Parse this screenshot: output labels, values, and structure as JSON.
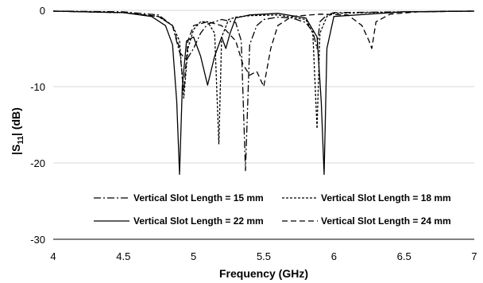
{
  "chart_data": {
    "type": "line",
    "xlabel": "Frequency (GHz)",
    "ylabel_main": "|S",
    "ylabel_sub": "11",
    "ylabel_tail": "| (dB)",
    "xlim": [
      4,
      7
    ],
    "ylim": [
      -30,
      0
    ],
    "x_ticks": [
      "4",
      "4.5",
      "5",
      "5.5",
      "6",
      "6.5",
      "7"
    ],
    "y_ticks": [
      "0",
      "-10",
      "-20",
      "-30"
    ],
    "grid": "horizontal",
    "legend_position": "bottom",
    "series": [
      {
        "name": "Vertical Slot Length = 15 mm",
        "dash": "dash-dot",
        "x": [
          4.0,
          4.5,
          4.75,
          4.85,
          4.9,
          4.95,
          5.0,
          5.05,
          5.1,
          5.2,
          5.3,
          5.34,
          5.37,
          5.4,
          5.45,
          5.5,
          5.6,
          5.7,
          5.8,
          5.85,
          5.88,
          5.9,
          5.95,
          6.0,
          6.5,
          7.0
        ],
        "y": [
          -0.1,
          -0.2,
          -0.6,
          -2.0,
          -5.5,
          -6.5,
          -5.0,
          -3.0,
          -1.8,
          -1.2,
          -1.6,
          -4.0,
          -21.0,
          -4.5,
          -2.0,
          -1.2,
          -0.9,
          -1.0,
          -1.6,
          -2.8,
          -5.0,
          -1.5,
          -0.6,
          -0.3,
          -0.2,
          -0.1
        ]
      },
      {
        "name": "Vertical Slot Length = 18 mm",
        "dash": "fine-dash",
        "x": [
          4.0,
          4.5,
          4.75,
          4.85,
          4.9,
          4.93,
          4.96,
          5.0,
          5.05,
          5.1,
          5.15,
          5.18,
          5.2,
          5.25,
          5.3,
          5.4,
          5.6,
          5.8,
          5.85,
          5.88,
          5.9,
          5.95,
          6.0,
          6.5,
          7.0
        ],
        "y": [
          -0.1,
          -0.3,
          -0.8,
          -2.0,
          -4.0,
          -11.5,
          -5.0,
          -2.5,
          -1.5,
          -1.5,
          -3.0,
          -17.5,
          -3.5,
          -1.2,
          -0.9,
          -0.7,
          -0.6,
          -1.2,
          -3.0,
          -15.5,
          -3.0,
          -0.8,
          -0.4,
          -0.2,
          -0.1
        ]
      },
      {
        "name": "Vertical Slot Length = 22 mm",
        "dash": "solid",
        "x": [
          4.0,
          4.5,
          4.7,
          4.8,
          4.85,
          4.88,
          4.9,
          4.92,
          4.95,
          5.0,
          5.05,
          5.1,
          5.15,
          5.2,
          5.23,
          5.26,
          5.3,
          5.4,
          5.6,
          5.8,
          5.88,
          5.91,
          5.93,
          5.95,
          6.0,
          6.5,
          7.0
        ],
        "y": [
          -0.1,
          -0.3,
          -0.8,
          -2.0,
          -4.5,
          -12.0,
          -21.5,
          -10.0,
          -4.0,
          -3.5,
          -6.0,
          -9.8,
          -6.0,
          -3.5,
          -5.0,
          -3.0,
          -1.0,
          -0.6,
          -0.4,
          -1.0,
          -3.5,
          -12.0,
          -21.5,
          -5.0,
          -0.8,
          -0.2,
          -0.1
        ]
      },
      {
        "name": "Vertical Slot Length = 24 mm",
        "dash": "dash",
        "x": [
          4.0,
          4.5,
          4.75,
          4.85,
          4.9,
          4.93,
          4.96,
          5.0,
          5.1,
          5.2,
          5.3,
          5.35,
          5.4,
          5.45,
          5.5,
          5.55,
          5.6,
          5.7,
          5.9,
          6.1,
          6.2,
          6.25,
          6.27,
          6.3,
          6.4,
          6.6,
          7.0
        ],
        "y": [
          -0.1,
          -0.3,
          -0.8,
          -2.0,
          -5.0,
          -10.5,
          -4.0,
          -2.0,
          -1.5,
          -2.0,
          -4.0,
          -7.0,
          -8.5,
          -8.0,
          -10.0,
          -5.0,
          -2.0,
          -0.8,
          -0.5,
          -0.6,
          -2.0,
          -4.0,
          -5.0,
          -1.5,
          -0.5,
          -0.2,
          -0.1
        ]
      }
    ]
  }
}
